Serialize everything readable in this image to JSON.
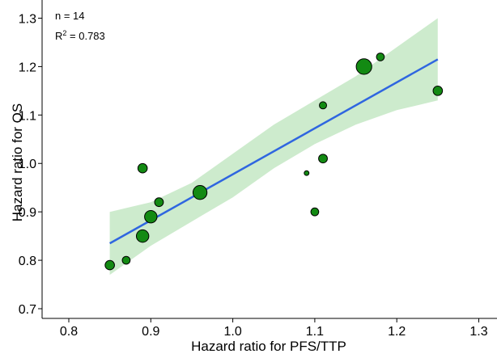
{
  "chart_data": {
    "type": "scatter",
    "title": "",
    "xlabel": "Hazard ratio for PFS/TTP",
    "ylabel": "Hazard ratio for OS",
    "xlim": [
      0.78,
      1.31
    ],
    "ylim": [
      0.68,
      1.31
    ],
    "x_ticks": [
      0.8,
      0.9,
      1.0,
      1.1,
      1.2,
      1.3
    ],
    "x_tick_labels": [
      "0.8",
      "0.9",
      "1.0",
      "1.1",
      "1.2",
      "1.3"
    ],
    "y_ticks": [
      0.7,
      0.8,
      0.9,
      1.0,
      1.1,
      1.2,
      1.3
    ],
    "y_tick_labels": [
      "0.7",
      "0.8",
      "0.9",
      "1.0",
      "1.1",
      "1.2",
      "1.3"
    ],
    "grid": false,
    "annotations": {
      "n_text": "n  = 14",
      "r2_prefix": "R",
      "r2_sup": "2",
      "r2_suffix": " = 0.783"
    },
    "points": [
      {
        "x": 0.85,
        "y": 0.79,
        "size": 2
      },
      {
        "x": 0.87,
        "y": 0.8,
        "size": 1.5
      },
      {
        "x": 0.89,
        "y": 0.85,
        "size": 3
      },
      {
        "x": 0.89,
        "y": 0.99,
        "size": 2
      },
      {
        "x": 0.9,
        "y": 0.89,
        "size": 3
      },
      {
        "x": 0.91,
        "y": 0.92,
        "size": 1.8
      },
      {
        "x": 0.96,
        "y": 0.94,
        "size": 3.5
      },
      {
        "x": 1.09,
        "y": 0.98,
        "size": 0.5
      },
      {
        "x": 1.1,
        "y": 0.9,
        "size": 1.5
      },
      {
        "x": 1.11,
        "y": 1.01,
        "size": 1.8
      },
      {
        "x": 1.11,
        "y": 1.12,
        "size": 1.3
      },
      {
        "x": 1.16,
        "y": 1.2,
        "size": 4
      },
      {
        "x": 1.18,
        "y": 1.22,
        "size": 1.5
      },
      {
        "x": 1.25,
        "y": 1.15,
        "size": 2
      }
    ],
    "regression_line": {
      "x": [
        0.85,
        1.25
      ],
      "y": [
        0.835,
        1.215
      ]
    },
    "confidence_band": {
      "x": [
        0.85,
        0.9,
        0.95,
        1.0,
        1.05,
        1.1,
        1.15,
        1.2,
        1.25
      ],
      "upper": [
        0.9,
        0.92,
        0.96,
        1.02,
        1.08,
        1.13,
        1.18,
        1.24,
        1.3
      ],
      "lower": [
        0.77,
        0.83,
        0.88,
        0.93,
        0.99,
        1.04,
        1.08,
        1.11,
        1.13
      ]
    },
    "colors": {
      "point_fill": "#138a13",
      "point_stroke": "#000000",
      "line": "#2f66e0",
      "band": "#cdebcd"
    }
  }
}
